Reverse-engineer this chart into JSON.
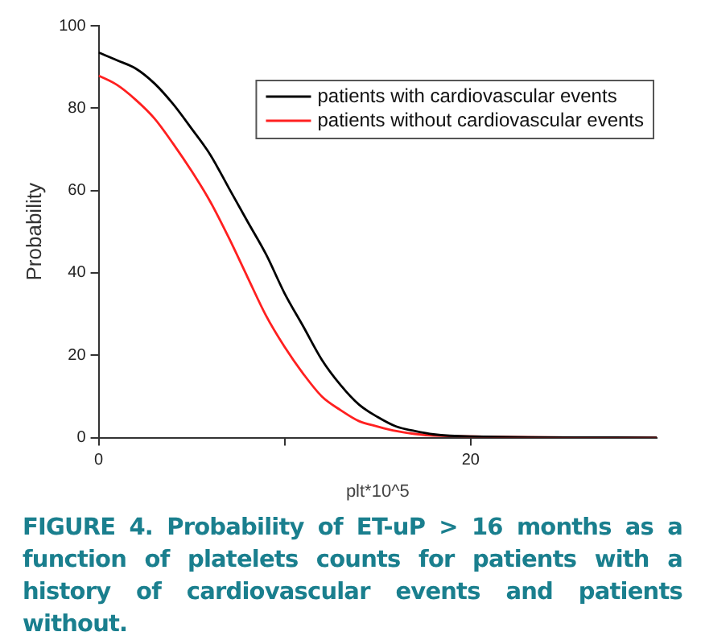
{
  "chart_data": {
    "type": "line",
    "xlabel": "plt*10^5",
    "ylabel": "Probability",
    "xlim": [
      0,
      30
    ],
    "xticks": [
      0,
      {
        "value": 10,
        "label": null
      },
      20
    ],
    "ylim": [
      0,
      100
    ],
    "yticks": [
      0,
      20,
      40,
      60,
      80,
      100
    ],
    "x": [
      0,
      1,
      2,
      3,
      4,
      5,
      6,
      7,
      8,
      9,
      10,
      11,
      12,
      13,
      14,
      15,
      16,
      17,
      18,
      20,
      30
    ],
    "series": [
      {
        "name": "patients with cardiovascular events",
        "color": "#000000",
        "values": [
          93.5,
          91.6,
          89.6,
          86,
          81,
          75,
          68.7,
          60.6,
          52.5,
          44.5,
          35,
          27,
          18.9,
          12.8,
          8,
          5,
          2.7,
          1.6,
          0.8,
          0.3,
          0
        ]
      },
      {
        "name": "patients without cardiovascular events",
        "color": "#ff2020",
        "values": [
          87.9,
          85.6,
          82,
          77.5,
          71.4,
          64.7,
          57.3,
          48.5,
          39,
          29.6,
          22,
          15.5,
          10,
          6.7,
          4,
          2.7,
          1.6,
          0.9,
          0.5,
          null,
          0
        ]
      }
    ],
    "legend": "top right",
    "grid": false,
    "marker": "none",
    "line_style": "solid",
    "annotations": [
      "FIGURE 4. Probability of ET-uP > 16 months as a function of platelets counts for patients with a history of cardiovascular events and patients without."
    ]
  }
}
